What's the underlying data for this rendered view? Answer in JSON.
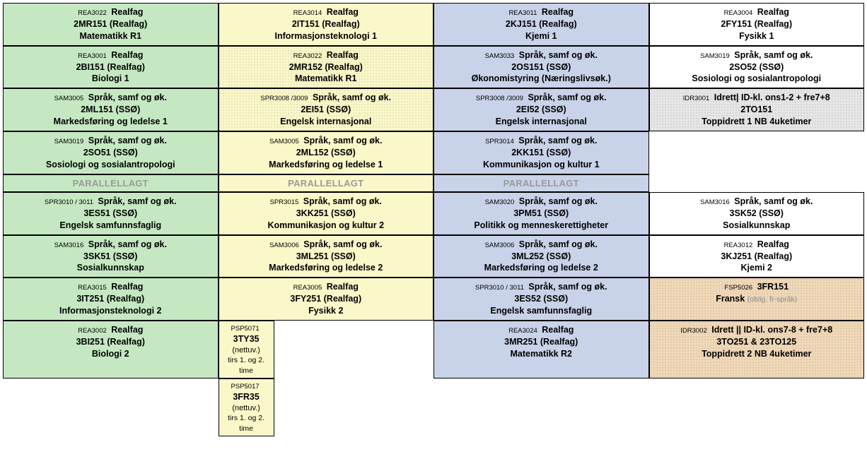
{
  "colors": {
    "green": "#c5e8c2",
    "yellow": "#faf7c8",
    "blue": "#c8d2e8",
    "white": "#ffffff",
    "tan": "#f0d8b8",
    "graycell": "#e6e6e6"
  },
  "parallel_label": "PARALLELLAGT",
  "rows": [
    [
      {
        "fill": "green",
        "code": "REA3022",
        "cat": "Realfag",
        "line2": "2MR151   (Realfag)",
        "line3": "Matematikk R1"
      },
      {
        "fill": "yellow",
        "code": "REA3014",
        "cat": "Realfag",
        "line2": "2IT151   (Realfag)",
        "line3": "Informasjonsteknologi 1"
      },
      {
        "fill": "blue",
        "code": "REA3011",
        "cat": "Realfag",
        "line2": "2KJ151   (Realfag)",
        "line3": "Kjemi 1"
      },
      {
        "fill": "white",
        "code": "REA3004",
        "cat": "Realfag",
        "line2": "2FY151   (Realfag)",
        "line3": "Fysikk 1"
      }
    ],
    [
      {
        "fill": "green",
        "code": "REA3001",
        "cat": "Realfag",
        "line2": "2BI151   (Realfag)",
        "line3": "Biologi 1"
      },
      {
        "fill": "yellow",
        "dotted": true,
        "code": "REA3022",
        "cat": "Realfag",
        "line2": "2MR152   (Realfag)",
        "line3": "Matematikk R1"
      },
      {
        "fill": "blue",
        "code": "SAM3033",
        "cat": "Språk, samf og øk.",
        "line2": "2OS151  (SSØ)",
        "line3": "Økonomistyring (Næringslivsøk.)"
      },
      {
        "fill": "white",
        "code": "SAM3019",
        "cat": "Språk, samf og øk.",
        "line2": "2SO52  (SSØ)",
        "line3": "Sosiologi og sosialantropologi"
      }
    ],
    [
      {
        "fill": "green",
        "code": "SAM3005",
        "cat": "Språk, samf og øk.",
        "line2": "2ML151  (SSØ)",
        "line3": "Markedsføring og ledelse 1"
      },
      {
        "fill": "yellow",
        "dotted": true,
        "code": "SPR3008 /3009",
        "cat": "Språk, samf og øk.",
        "line2": "2EI51  (SSØ)",
        "line3": "Engelsk internasjonal"
      },
      {
        "fill": "blue",
        "code": "SPR3008 /3009",
        "cat": "Språk, samf og øk.",
        "line2": "2EI52  (SSØ)",
        "line3": "Engelsk internasjonal"
      },
      {
        "fill": "graycell",
        "dotted": true,
        "code": "IDR3001",
        "cat": "Idrett| ID-kl. ons1-2 + fre7+8",
        "cat_italic_part": "fre7+8",
        "line2": "2TO151",
        "line3": "Toppidrett 1     NB 4uketimer"
      }
    ],
    [
      {
        "fill": "green",
        "code": "SAM3019",
        "cat": "Språk, samf og øk.",
        "line2": "2SO51  (SSØ)",
        "line3": "Sosiologi og sosialantropologi"
      },
      {
        "fill": "yellow",
        "code": "SAM3005",
        "cat": "Språk, samf og øk.",
        "line2": "2ML152  (SSØ)",
        "line3": "Markedsføring og ledelse 1"
      },
      {
        "fill": "blue",
        "code": "SPR3014",
        "cat": "Språk, samf og øk.",
        "line2": "2KK151  (SSØ)",
        "line3": "Kommunikasjon og kultur 1"
      },
      {
        "empty": true
      }
    ]
  ],
  "parallel_row": [
    {
      "fill": "green"
    },
    {
      "fill": "yellow"
    },
    {
      "fill": "blue"
    },
    {
      "empty": true
    }
  ],
  "rows2": [
    [
      {
        "fill": "green",
        "code": "SPR3010 / 3011",
        "cat": "Språk, samf og øk.",
        "line2": "3ES51  (SSØ)",
        "line3": "Engelsk samfunnsfaglig"
      },
      {
        "fill": "yellow",
        "code": "SPR3015",
        "cat": "Språk, samf og øk.",
        "line2": "3KK251  (SSØ)",
        "line3": "Kommunikasjon og kultur 2"
      },
      {
        "fill": "blue",
        "code": "SAM3020",
        "cat": "Språk, samf og øk.",
        "line2": "3PM51  (SSØ)",
        "line3": "Politikk og menneskerettigheter"
      },
      {
        "fill": "white",
        "code": "SAM3016",
        "cat": "Språk, samf og øk.",
        "line2": "3SK52  (SSØ)",
        "line3": "Sosialkunnskap"
      }
    ],
    [
      {
        "fill": "green",
        "code": "SAM3016",
        "cat": "Språk, samf og øk.",
        "line2": "3SK51  (SSØ)",
        "line3": "Sosialkunnskap"
      },
      {
        "fill": "yellow",
        "code": "SAM3006",
        "cat": "Språk, samf og øk.",
        "line2": "3ML251  (SSØ)",
        "line3": "Markedsføring og ledelse 2"
      },
      {
        "fill": "blue",
        "code": "SAM3006",
        "cat": "Språk, samf og øk.",
        "line2": "3ML252  (SSØ)",
        "line3": "Markedsføring og ledelse 2"
      },
      {
        "fill": "white",
        "code": "REA3012",
        "cat": "Realfag",
        "line2": "3KJ251   (Realfag)",
        "line3": "Kjemi 2"
      }
    ],
    [
      {
        "fill": "green",
        "code": "REA3015",
        "cat": "Realfag",
        "line2": "3IT251   (Realfag)",
        "line3": "Informasjonsteknologi 2"
      },
      {
        "fill": "yellow",
        "code": "REA3005",
        "cat": "Realfag",
        "line2": "3FY251   (Realfag)",
        "line3": "Fysikk 2"
      },
      {
        "fill": "blue",
        "code": "SPR3010 / 3011",
        "cat": "Språk, samf og øk.",
        "line2": "3ES52  (SSØ)",
        "line3": "Engelsk samfunnsfaglig"
      },
      {
        "fill": "tan",
        "dotted": true,
        "code": "FSP5026",
        "cat": "3FR151",
        "cat_bold": true,
        "line2": "Fransk",
        "line2_note": "(oblig. fr-språk)"
      }
    ]
  ],
  "row_last": [
    {
      "fill": "green",
      "code": "REA3002",
      "cat": "Realfag",
      "line2": "3BI251   (Realfag)",
      "line3": "Biologi 2"
    },
    {
      "split": true,
      "fill": "yellow",
      "left_code": "PSP5071",
      "left_main": "3TY35",
      "left_mid": "(nettuv.)",
      "left_bot": "tirs 1. og 2. time"
    },
    {
      "fill": "blue",
      "code": "REA3024",
      "cat": "Realfag",
      "line2": "3MR251   (Realfag)",
      "line3": "Matematikk R2"
    },
    {
      "fill": "tan",
      "dotted": true,
      "code": "IDR3002",
      "cat": "Idrett  || ID-kl. ons7-8 + fre7+8",
      "line2": "3TO251 & 23TO125",
      "line3": "Toppidrett 2     NB 4uketimer"
    }
  ],
  "row_extra": [
    {
      "empty": true
    },
    {
      "split": true,
      "fill": "yellow",
      "left_code": "PSP5017",
      "left_main": "3FR35",
      "left_mid": "(nettuv.)",
      "left_bot": "tirs 1. og 2. time"
    },
    {
      "empty": true
    },
    {
      "empty": true
    }
  ]
}
